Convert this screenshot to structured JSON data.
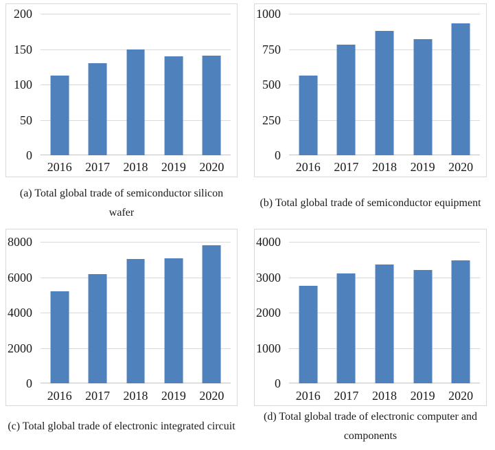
{
  "colors": {
    "bar": "#4f81bd",
    "gridline": "#d9d9d9",
    "axis_line": "#c3c3c3",
    "box_border": "#d8d8d8",
    "text": "#1a1a1a"
  },
  "chart_data": [
    {
      "type": "bar",
      "title": "",
      "xlabel": "",
      "ylabel": "",
      "caption": "(a) Total global trade of semiconductor silicon wafer",
      "caption_lines": [
        "(a) Total global trade of semiconductor silicon",
        "wafer"
      ],
      "categories": [
        "2016",
        "2017",
        "2018",
        "2019",
        "2020"
      ],
      "values": [
        113,
        130,
        150,
        140,
        141
      ],
      "ylim": [
        0,
        200
      ],
      "yticks": [
        0,
        50,
        100,
        150,
        200
      ],
      "grid": true,
      "legend": "none"
    },
    {
      "type": "bar",
      "title": "",
      "xlabel": "",
      "ylabel": "",
      "caption": "(b) Total global trade of semiconductor equipment",
      "caption_lines": [
        "(b) Total global trade of semiconductor equipment"
      ],
      "categories": [
        "2016",
        "2017",
        "2018",
        "2019",
        "2020"
      ],
      "values": [
        565,
        780,
        880,
        820,
        930
      ],
      "ylim": [
        0,
        1000
      ],
      "yticks": [
        0,
        250,
        500,
        750,
        1000
      ],
      "grid": true,
      "legend": "none"
    },
    {
      "type": "bar",
      "title": "",
      "xlabel": "",
      "ylabel": "",
      "caption": "(c) Total global trade of electronic integrated circuit",
      "caption_lines": [
        "(c) Total global trade of electronic integrated circuit"
      ],
      "categories": [
        "2016",
        "2017",
        "2018",
        "2019",
        "2020"
      ],
      "values": [
        5200,
        6180,
        7030,
        7050,
        7800
      ],
      "ylim": [
        0,
        8000
      ],
      "yticks": [
        0,
        2000,
        4000,
        6000,
        8000
      ],
      "grid": true,
      "legend": "none"
    },
    {
      "type": "bar",
      "title": "",
      "xlabel": "",
      "ylabel": "",
      "caption": "(d) Total global trade of electronic computer and components",
      "caption_lines": [
        "(d) Total global trade of electronic computer and",
        "components"
      ],
      "categories": [
        "2016",
        "2017",
        "2018",
        "2019",
        "2020"
      ],
      "values": [
        2750,
        3100,
        3350,
        3200,
        3480
      ],
      "ylim": [
        0,
        4000
      ],
      "yticks": [
        0,
        1000,
        2000,
        3000,
        4000
      ],
      "grid": true,
      "legend": "none"
    }
  ]
}
